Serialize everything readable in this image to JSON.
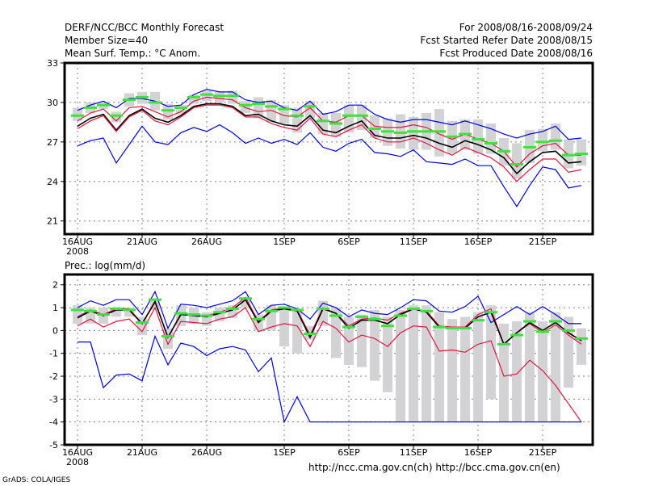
{
  "header": {
    "title": "DERF/NCC/BCC Monthly Forecast",
    "member_size": "Member Size=40",
    "variable": "Mean Surf. Temp.: °C Anom.",
    "period": "For 2008/08/16-2008/09/24",
    "started": "Fcst Started Refer Date 2008/08/15",
    "produced": "Fcst Produced Date 2008/08/16"
  },
  "footer": {
    "grads": "GrADS: COLA/IGES",
    "links": "http://ncc.cma.gov.cn(ch)   http://bcc.cma.gov.cn(en)"
  },
  "colors": {
    "blue": "#0000dd",
    "red": "#e0143c",
    "black": "#000000",
    "green": "#40e040",
    "gray": "#d3d3d6",
    "grid": "#808080"
  },
  "chart_data": [
    {
      "type": "line",
      "title": "Mean Surf. Temp.: °C Anom.",
      "xlabel": "",
      "ylabel": "",
      "ylim": [
        20,
        33
      ],
      "yticks": [
        21,
        24,
        27,
        30,
        33
      ],
      "xtick_labels": [
        "16AUG",
        "21AUG",
        "26AUG",
        "1SEP",
        "6SEP",
        "11SEP",
        "16SEP",
        "21SEP"
      ],
      "xtick_days": [
        0,
        5,
        10,
        16,
        21,
        26,
        31,
        36
      ],
      "year_label": "2008",
      "grid": true,
      "days": 40,
      "series": [
        {
          "name": "max",
          "color": "blue",
          "values": [
            29.4,
            29.8,
            30.1,
            29.6,
            30.3,
            30.3,
            30.1,
            29.7,
            29.8,
            30.6,
            31.0,
            30.8,
            30.8,
            30.2,
            30.0,
            30.1,
            29.6,
            29.4,
            30.1,
            29.1,
            29.3,
            29.8,
            29.8,
            29.1,
            28.7,
            28.5,
            28.7,
            28.7,
            28.5,
            28.3,
            28.6,
            28.3,
            28.0,
            27.6,
            27.3,
            27.6,
            27.8,
            28.2,
            27.2,
            27.3
          ]
        },
        {
          "name": "upper",
          "color": "red",
          "values": [
            28.6,
            29.2,
            29.5,
            28.6,
            29.6,
            29.7,
            29.3,
            28.9,
            29.3,
            30.1,
            30.4,
            30.3,
            30.2,
            29.6,
            29.3,
            29.4,
            29.0,
            28.9,
            29.6,
            28.6,
            28.5,
            29.0,
            29.0,
            28.2,
            28.1,
            28.1,
            28.3,
            28.1,
            27.6,
            27.2,
            27.6,
            27.2,
            26.9,
            26.3,
            25.1,
            26.1,
            26.7,
            26.9,
            26.0,
            26.0
          ]
        },
        {
          "name": "mean",
          "color": "black",
          "values": [
            28.2,
            28.8,
            29.1,
            27.9,
            29.0,
            29.5,
            28.8,
            28.5,
            29.0,
            29.7,
            29.9,
            29.9,
            29.7,
            29.0,
            29.1,
            28.6,
            28.3,
            28.2,
            29.0,
            27.9,
            27.7,
            28.2,
            28.6,
            27.5,
            27.3,
            27.3,
            27.5,
            27.3,
            26.9,
            26.6,
            27.1,
            26.8,
            26.4,
            25.8,
            24.6,
            25.5,
            26.2,
            26.3,
            25.4,
            25.5
          ]
        },
        {
          "name": "lower",
          "color": "red",
          "values": [
            28.0,
            28.6,
            29.0,
            27.8,
            28.9,
            29.4,
            28.6,
            28.3,
            28.9,
            29.6,
            29.8,
            29.8,
            29.6,
            28.9,
            28.9,
            28.4,
            28.1,
            27.9,
            28.8,
            27.6,
            27.4,
            27.9,
            28.3,
            27.3,
            27.0,
            27.0,
            27.3,
            26.9,
            26.4,
            26.0,
            26.6,
            26.2,
            25.8,
            25.1,
            24.0,
            24.9,
            25.7,
            25.7,
            24.7,
            24.9
          ]
        },
        {
          "name": "min",
          "color": "blue",
          "values": [
            26.7,
            27.1,
            27.3,
            25.4,
            26.8,
            28.2,
            27.0,
            26.8,
            27.7,
            28.1,
            27.8,
            28.3,
            27.7,
            26.9,
            27.3,
            26.9,
            27.2,
            26.8,
            27.7,
            26.6,
            26.3,
            26.9,
            27.2,
            26.2,
            26.1,
            25.9,
            26.4,
            25.5,
            25.4,
            25.3,
            25.7,
            25.2,
            25.2,
            23.6,
            22.1,
            23.7,
            25.1,
            24.9,
            23.5,
            23.7
          ]
        }
      ],
      "bars": {
        "name": "spread",
        "color": "gray",
        "low": [
          28.6,
          29.2,
          29.5,
          28.5,
          29.7,
          29.9,
          29.4,
          28.7,
          29.1,
          29.9,
          30.1,
          30.0,
          29.9,
          29.2,
          28.8,
          28.5,
          28.4,
          27.7,
          28.8,
          27.6,
          27.4,
          27.7,
          27.9,
          27.3,
          26.7,
          26.5,
          26.4,
          26.4,
          25.9,
          26.1,
          26.4,
          26.1,
          26.1,
          25.2,
          24.2,
          25.4,
          26.3,
          26.4,
          25.0,
          25.2
        ],
        "high": [
          29.6,
          30.0,
          30.0,
          29.3,
          30.7,
          30.8,
          30.8,
          29.9,
          29.8,
          30.6,
          30.9,
          30.8,
          30.9,
          30.1,
          30.4,
          30.2,
          29.8,
          29.6,
          30.1,
          29.2,
          29.2,
          29.8,
          29.8,
          29.0,
          28.8,
          29.1,
          28.9,
          29.2,
          29.5,
          28.6,
          28.7,
          28.7,
          28.4,
          27.3,
          26.9,
          27.9,
          28.0,
          28.4,
          27.2,
          27.2
        ]
      },
      "markers": {
        "name": "observed",
        "color": "green",
        "values": [
          29.0,
          29.6,
          29.8,
          29.0,
          30.2,
          30.4,
          30.0,
          29.4,
          29.6,
          30.4,
          30.6,
          30.5,
          30.5,
          29.8,
          29.9,
          29.7,
          29.5,
          29.0,
          29.7,
          28.6,
          28.4,
          29.0,
          29.0,
          28.0,
          27.8,
          27.7,
          27.8,
          27.8,
          27.8,
          27.4,
          27.6,
          27.2,
          26.9,
          26.3,
          25.3,
          26.6,
          27.0,
          27.1,
          26.0,
          26.1
        ]
      }
    },
    {
      "type": "line",
      "title": "Prec.: log(mm/d)",
      "xlabel": "",
      "ylabel": "",
      "ylim": [
        -5,
        2.5
      ],
      "yticks": [
        -5,
        -4,
        -3,
        -2,
        -1,
        0,
        1,
        2
      ],
      "xtick_labels": [
        "16AUG",
        "21AUG",
        "26AUG",
        "1SEP",
        "6SEP",
        "11SEP",
        "16SEP",
        "21SEP"
      ],
      "xtick_days": [
        0,
        5,
        10,
        16,
        21,
        26,
        31,
        36
      ],
      "year_label": "2008",
      "grid": true,
      "days": 40,
      "series": [
        {
          "name": "max",
          "color": "blue",
          "values": [
            1.0,
            1.3,
            1.1,
            1.35,
            1.35,
            0.7,
            1.7,
            0.1,
            1.15,
            1.1,
            1.0,
            1.15,
            1.3,
            1.7,
            0.7,
            1.1,
            1.15,
            0.95,
            0.5,
            1.2,
            1.0,
            0.6,
            0.9,
            0.75,
            0.7,
            1.0,
            1.35,
            1.3,
            0.85,
            0.8,
            1.05,
            1.5,
            0.35,
            0.7,
            1.05,
            0.7,
            1.05,
            0.7,
            0.3,
            0.3
          ]
        },
        {
          "name": "upper",
          "color": "red",
          "values": [
            0.6,
            0.9,
            0.7,
            0.95,
            0.95,
            0.3,
            1.3,
            -0.3,
            0.75,
            0.7,
            0.65,
            0.8,
            1.0,
            1.45,
            0.4,
            0.9,
            1.0,
            0.9,
            -0.2,
            1.0,
            0.75,
            0.2,
            0.5,
            0.55,
            0.45,
            0.75,
            0.95,
            0.85,
            0.2,
            0.15,
            0.15,
            0.7,
            0.95,
            -0.6,
            -0.1,
            0.3,
            -0.1,
            0.25,
            -0.2,
            -0.6
          ]
        },
        {
          "name": "mean",
          "color": "black",
          "values": [
            0.55,
            0.85,
            0.65,
            0.9,
            0.9,
            0.3,
            1.25,
            -0.3,
            0.7,
            0.65,
            0.6,
            0.75,
            0.9,
            1.35,
            0.35,
            0.85,
            0.95,
            0.85,
            -0.3,
            0.95,
            0.75,
            0.1,
            0.45,
            0.45,
            0.3,
            0.7,
            0.95,
            0.8,
            0.15,
            0.1,
            0.1,
            0.6,
            0.8,
            -0.6,
            -0.1,
            0.35,
            0.0,
            0.35,
            -0.1,
            -0.45
          ]
        },
        {
          "name": "lower",
          "color": "red",
          "values": [
            0.2,
            0.5,
            0.15,
            0.4,
            0.5,
            -0.05,
            1.0,
            -0.6,
            0.4,
            0.35,
            0.3,
            0.5,
            0.6,
            1.0,
            -0.05,
            0.15,
            0.3,
            0.2,
            -0.7,
            0.4,
            0.1,
            -0.5,
            -0.2,
            -0.35,
            -0.7,
            -0.1,
            0.2,
            0.15,
            -0.9,
            -0.85,
            -0.95,
            -0.6,
            -0.45,
            -2.0,
            -1.9,
            -1.3,
            -1.75,
            -2.4,
            -3.2,
            -4.0
          ]
        },
        {
          "name": "min",
          "color": "blue",
          "values": [
            -0.5,
            -0.5,
            -2.5,
            -1.95,
            -1.9,
            -2.2,
            -0.25,
            -1.5,
            -0.55,
            -0.7,
            -1.1,
            -0.8,
            -0.7,
            -0.85,
            -1.8,
            -1.2,
            -4.0,
            -2.9,
            -4.0,
            -4.0,
            -4.0,
            -4.0,
            -4.0,
            -4.0,
            -4.0,
            -4.0,
            -4.0,
            -4.0,
            -4.0,
            -4.0,
            -4.0,
            -4.0,
            -4.0,
            -4.0,
            -4.0,
            -4.0,
            -4.0,
            -4.0,
            -4.0,
            -4.0
          ]
        }
      ],
      "bars": {
        "name": "spread",
        "color": "gray",
        "low": [
          0.3,
          0.3,
          0.3,
          0.6,
          0.6,
          -0.2,
          0.9,
          -0.8,
          0.2,
          0.3,
          0.2,
          0.4,
          0.55,
          1.0,
          0.0,
          0.0,
          -0.7,
          -1.0,
          -0.4,
          0.2,
          -1.2,
          -1.5,
          -1.6,
          -2.2,
          -2.7,
          -4.0,
          -4.0,
          -4.0,
          -4.0,
          -4.0,
          -4.0,
          -4.0,
          -3.0,
          -4.0,
          -4.0,
          -4.0,
          -4.0,
          -4.0,
          -2.5,
          -1.5
        ],
        "high": [
          1.1,
          1.0,
          1.0,
          1.0,
          1.0,
          0.6,
          1.4,
          0.1,
          1.1,
          1.0,
          0.8,
          1.0,
          1.1,
          1.4,
          0.7,
          1.1,
          1.0,
          0.9,
          0.2,
          1.3,
          1.0,
          0.6,
          0.7,
          0.9,
          0.6,
          0.9,
          1.1,
          1.1,
          0.8,
          0.5,
          0.6,
          0.8,
          1.1,
          0.3,
          0.4,
          0.8,
          0.4,
          0.8,
          0.6,
          0.1
        ]
      },
      "markers": {
        "name": "observed",
        "color": "green",
        "values": [
          0.9,
          0.85,
          0.7,
          0.95,
          0.9,
          0.35,
          1.35,
          -0.25,
          0.75,
          0.7,
          0.65,
          0.8,
          0.95,
          1.4,
          0.5,
          0.85,
          1.0,
          0.9,
          -0.15,
          0.95,
          0.65,
          0.15,
          0.6,
          0.5,
          0.2,
          0.65,
          0.95,
          0.85,
          0.15,
          0.1,
          0.1,
          0.45,
          0.8,
          -0.6,
          -0.2,
          0.4,
          -0.05,
          0.4,
          0.0,
          -0.35
        ]
      }
    }
  ]
}
